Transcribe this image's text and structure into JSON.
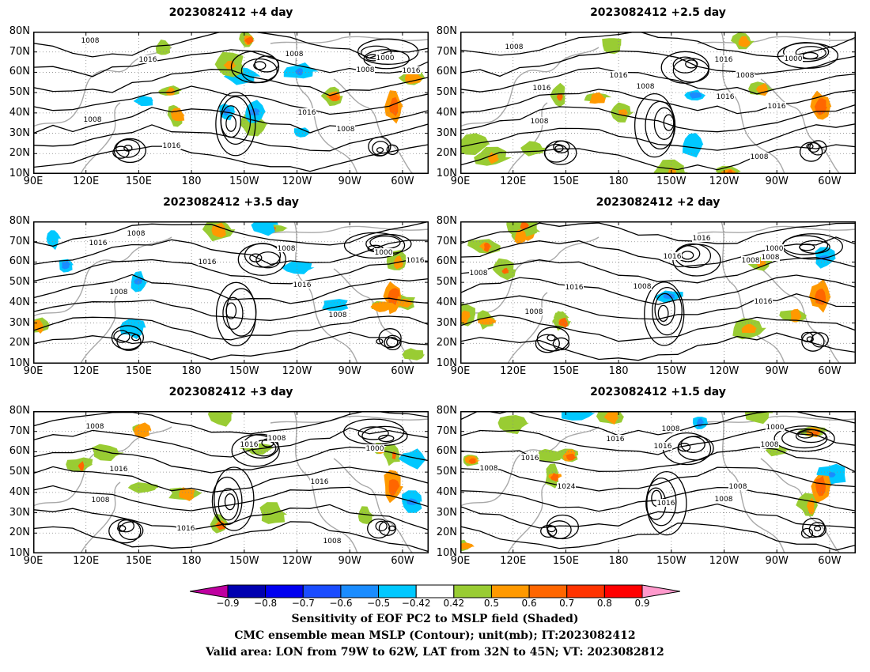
{
  "panels": [
    {
      "title": "2023082412  +4 day"
    },
    {
      "title": "2023082412  +2.5 day"
    },
    {
      "title": "2023082412  +3.5 day"
    },
    {
      "title": "2023082412  +2 day"
    },
    {
      "title": "2023082412  +3 day"
    },
    {
      "title": "2023082412  +1.5 day"
    }
  ],
  "axes": {
    "lat_labels": [
      "80N",
      "70N",
      "60N",
      "50N",
      "40N",
      "30N",
      "20N",
      "10N"
    ],
    "lon_labels": [
      "90E",
      "120E",
      "150E",
      "180",
      "150W",
      "120W",
      "90W",
      "60W"
    ]
  },
  "contour_labels": {
    "p1": [
      "1008",
      "1016",
      "1008",
      "1000",
      "1008",
      "1016",
      "1016",
      "1008",
      "1008",
      "1016"
    ],
    "p2": [
      "1008",
      "1016",
      "1016",
      "1008",
      "1016",
      "1000",
      "1008",
      "1016",
      "1016",
      "1008",
      "1008"
    ],
    "p3": [
      "1008",
      "1016",
      "1016",
      "1008",
      "1000",
      "1016",
      "1016",
      "1008",
      "1008"
    ],
    "p4": [
      "1016",
      "1016",
      "1008",
      "1000",
      "1008",
      "1008",
      "1016",
      "1008",
      "1016",
      "1008"
    ],
    "p5": [
      "1008",
      "1016",
      "1008",
      "1000",
      "1016",
      "1016",
      "1008",
      "1016",
      "1008"
    ],
    "p6": [
      "1008",
      "1000",
      "1016",
      "1016",
      "1008",
      "1016",
      "1008",
      "1024",
      "1016",
      "1008",
      "1008"
    ]
  },
  "colorbar": {
    "labels": [
      "−0.9",
      "−0.8",
      "−0.7",
      "−0.6",
      "−0.5",
      "−0.42",
      "0.42",
      "0.5",
      "0.6",
      "0.7",
      "0.8",
      "0.9"
    ],
    "colors": [
      "#bf00a0",
      "#0000b0",
      "#0000f0",
      "#1a4cff",
      "#1a8cff",
      "#00c8ff",
      "#ffffff",
      "#99cc33",
      "#ff9900",
      "#ff6600",
      "#ff3300",
      "#ff0000",
      "#ff99cc"
    ]
  },
  "captions": {
    "line1": "Sensitivity of EOF PC2 to MSLP field (Shaded)",
    "line2": "CMC ensemble mean MSLP (Contour); unit(mb); IT:2023082412",
    "line3": "Valid area: LON from 79W to 62W, LAT from 32N to 45N; VT: 2023082812"
  }
}
